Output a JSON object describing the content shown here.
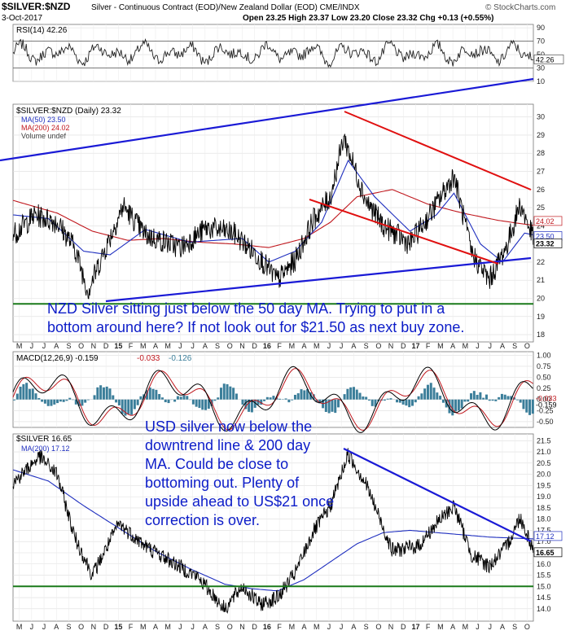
{
  "header": {
    "symbol": "$SILVER:$NZD",
    "description": "Silver - Continuous Contract (EOD)/New Zealand Dollar (EOD) CME/INDX",
    "date": "3-Oct-2017",
    "ohlc": "Open 23.25  High 23.37  Low 23.20  Close 23.32  Chg +0.13 (+0.55%)",
    "brand": "© StockCharts.com"
  },
  "colors": {
    "price": "#000000",
    "ma50": "#1f2fbf",
    "ma200": "#c0181e",
    "trend_blue": "#1a1ad6",
    "trend_red": "#e01010",
    "support_green": "#1a7a1a",
    "annotation": "#0c1cc8",
    "hist": "#3b7e9a"
  },
  "x_axis": {
    "labels": [
      "M",
      "J",
      "J",
      "A",
      "S",
      "O",
      "N",
      "D",
      "15",
      "F",
      "M",
      "A",
      "M",
      "J",
      "J",
      "A",
      "S",
      "O",
      "N",
      "D",
      "16",
      "F",
      "M",
      "A",
      "M",
      "J",
      "J",
      "A",
      "S",
      "O",
      "N",
      "D",
      "17",
      "F",
      "M",
      "A",
      "M",
      "J",
      "J",
      "A",
      "S",
      "O"
    ]
  },
  "chart_data": [
    {
      "type": "line",
      "panel": "rsi",
      "legend": "RSI(14) 42.26",
      "y_ticks": [
        90,
        70,
        50,
        30,
        10
      ],
      "ylim": [
        10,
        95
      ],
      "last_value_label": "42.26",
      "levels": [
        70,
        30
      ]
    },
    {
      "type": "line",
      "panel": "nzd_silver",
      "legend": [
        "$SILVER:$NZD (Daily) 23.32",
        "MA(50) 23.50",
        "MA(200) 24.02",
        "Volume undef"
      ],
      "y_ticks": [
        30,
        29,
        28,
        27,
        26,
        25,
        24,
        23,
        22,
        21,
        20,
        19,
        18
      ],
      "ylim": [
        17.6,
        30.7
      ],
      "last_labels": [
        {
          "text": "24.02",
          "value": 24.02
        },
        {
          "text": "23.50",
          "value": 23.5
        },
        {
          "text": "23.32",
          "value": 23.32
        }
      ],
      "series_keypoints": [
        {
          "name": "$SILVER:$NZD",
          "t": [
            0,
            5,
            10,
            14,
            17,
            20,
            25,
            30,
            38,
            44,
            50,
            56,
            60,
            64,
            68,
            72,
            75,
            80,
            84,
            90,
            95,
            100,
            104,
            108,
            112,
            115,
            118
          ],
          "y": [
            23.5,
            24.6,
            24.2,
            22.8,
            20.4,
            22.2,
            25.1,
            23.5,
            22.8,
            23.9,
            23.6,
            22.2,
            21.0,
            22.1,
            24.3,
            25.6,
            28.9,
            25.4,
            24.0,
            23.0,
            24.8,
            26.8,
            22.5,
            21.0,
            22.9,
            25.2,
            23.32
          ]
        },
        {
          "name": "MA(50)",
          "t": [
            0,
            8,
            16,
            22,
            30,
            40,
            52,
            58,
            64,
            70,
            76,
            82,
            90,
            96,
            100,
            106,
            111,
            116,
            118
          ],
          "y": [
            24.6,
            24.4,
            22.6,
            22.4,
            23.8,
            23.1,
            23.3,
            22.0,
            22.6,
            24.2,
            27.6,
            25.6,
            23.7,
            24.6,
            25.8,
            23.0,
            22.0,
            23.6,
            23.5
          ]
        },
        {
          "name": "MA(200)",
          "t": [
            0,
            10,
            18,
            26,
            34,
            42,
            50,
            58,
            66,
            72,
            78,
            86,
            94,
            102,
            110,
            118
          ],
          "y": [
            25.4,
            24.7,
            23.7,
            23.2,
            23.3,
            23.1,
            23.0,
            22.8,
            23.3,
            24.2,
            25.6,
            26.0,
            25.2,
            24.7,
            24.3,
            24.02
          ]
        }
      ],
      "support": 19.7
    },
    {
      "type": "line",
      "panel": "macd",
      "legend": [
        "MACD(12,26,9) -0.159",
        "-0.033",
        "-0.126"
      ],
      "y_ticks": [
        1.0,
        0.75,
        0.5,
        0.25,
        0.0,
        -0.25,
        -0.5
      ],
      "ylim": [
        -0.63,
        1.08
      ],
      "last_labels": [
        "-0.033",
        "-0.159"
      ]
    },
    {
      "type": "line",
      "panel": "usd_silver",
      "legend": [
        "$SILVER 16.65",
        "MA(200) 17.12"
      ],
      "y_ticks": [
        21.5,
        21.0,
        20.5,
        20.0,
        19.5,
        19.0,
        18.5,
        18.0,
        17.5,
        17.0,
        16.5,
        16.0,
        15.5,
        15.0,
        14.5,
        14.0
      ],
      "ylim": [
        13.45,
        21.8
      ],
      "last_labels": [
        {
          "text": "17.12",
          "value": 17.12
        },
        {
          "text": "16.65",
          "value": 16.65
        }
      ],
      "series_keypoints": [
        {
          "name": "$SILVER",
          "t": [
            0,
            6,
            10,
            14,
            18,
            24,
            30,
            36,
            42,
            48,
            52,
            56,
            60,
            64,
            68,
            72,
            76,
            80,
            86,
            92,
            96,
            100,
            104,
            108,
            112,
            115,
            118
          ],
          "y": [
            19.6,
            20.8,
            20.0,
            17.2,
            15.5,
            17.8,
            16.8,
            16.1,
            15.4,
            14.0,
            15.0,
            14.2,
            14.5,
            15.6,
            17.4,
            18.6,
            20.9,
            19.6,
            16.6,
            16.8,
            17.8,
            18.6,
            16.4,
            15.9,
            16.8,
            18.1,
            16.65
          ]
        },
        {
          "name": "MA(200)",
          "t": [
            0,
            8,
            16,
            24,
            32,
            40,
            48,
            54,
            60,
            66,
            72,
            78,
            84,
            90,
            96,
            102,
            108,
            114,
            118
          ],
          "y": [
            20.2,
            19.7,
            18.6,
            17.6,
            16.6,
            15.8,
            15.1,
            14.9,
            14.8,
            15.3,
            16.1,
            16.9,
            17.4,
            17.5,
            17.4,
            17.3,
            17.2,
            17.15,
            17.12
          ]
        }
      ],
      "support": 15.0
    }
  ],
  "annotations": {
    "nzd": "NZD Silver sitting just below the 50 day MA. Trying to put in a\nbottom around here? If not look out for $21.50 as next buy zone.",
    "usd": "USD silver now below the\ndowntrend line & 200 day\nMA. Could be close to\nbottoming out. Plenty of\nupside ahead to US$21 once\ncorrection is over."
  }
}
